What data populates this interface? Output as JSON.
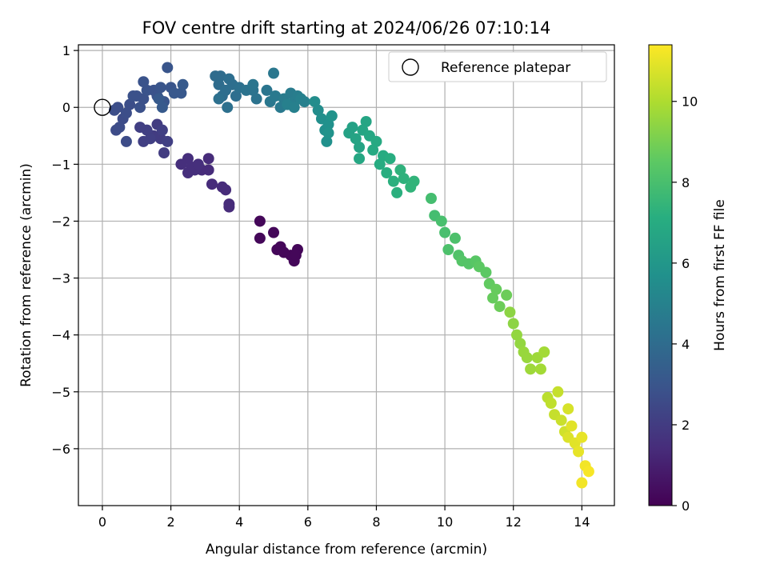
{
  "chart_data": {
    "type": "scatter",
    "title": "FOV centre drift starting at 2024/06/26 07:10:14",
    "xlabel": "Angular distance from reference (arcmin)",
    "ylabel": "Rotation from reference (arcmin)",
    "xlim": [
      -0.7,
      14.95
    ],
    "ylim": [
      -7.0,
      1.1
    ],
    "xticks": [
      0,
      2,
      4,
      6,
      8,
      10,
      12,
      14
    ],
    "yticks": [
      1,
      0,
      -1,
      -2,
      -3,
      -4,
      -5,
      -6
    ],
    "grid": true,
    "colormap": "viridis",
    "colorbar": {
      "label": "Hours from first FF file",
      "range": [
        0,
        11.4
      ],
      "ticks": [
        0,
        2,
        4,
        6,
        8,
        10
      ]
    },
    "legend": {
      "placement": "top-right",
      "entries": [
        "Reference platepar"
      ]
    },
    "reference_point": {
      "x": 0,
      "y": 0
    },
    "points": [
      [
        4.6,
        -2.0,
        0.2
      ],
      [
        4.6,
        -2.3,
        0.2
      ],
      [
        5.0,
        -2.2,
        0.2
      ],
      [
        5.1,
        -2.5,
        0.2
      ],
      [
        5.2,
        -2.45,
        0.2
      ],
      [
        5.5,
        -2.6,
        0.2
      ],
      [
        5.6,
        -2.7,
        0.2
      ],
      [
        5.7,
        -2.5,
        0.2
      ],
      [
        5.65,
        -2.6,
        0.2
      ],
      [
        5.3,
        -2.55,
        0.2
      ],
      [
        3.7,
        -1.7,
        1.4
      ],
      [
        3.7,
        -1.75,
        1.4
      ],
      [
        3.6,
        -1.45,
        1.4
      ],
      [
        3.5,
        -1.4,
        1.4
      ],
      [
        3.2,
        -1.35,
        1.4
      ],
      [
        3.1,
        -1.1,
        1.4
      ],
      [
        3.1,
        -0.9,
        1.4
      ],
      [
        2.9,
        -1.1,
        1.4
      ],
      [
        2.7,
        -1.1,
        1.5
      ],
      [
        2.5,
        -1.15,
        1.5
      ],
      [
        2.5,
        -0.9,
        1.5
      ],
      [
        2.3,
        -1.0,
        1.5
      ],
      [
        2.6,
        -1.05,
        1.5
      ],
      [
        2.8,
        -1.0,
        1.5
      ],
      [
        1.8,
        -0.8,
        2.0
      ],
      [
        1.7,
        -0.55,
        2.0
      ],
      [
        1.6,
        -0.3,
        2.0
      ],
      [
        1.5,
        -0.5,
        2.0
      ],
      [
        1.2,
        -0.6,
        2.1
      ],
      [
        1.3,
        -0.4,
        2.1
      ],
      [
        1.1,
        -0.35,
        2.1
      ],
      [
        1.4,
        -0.55,
        2.1
      ],
      [
        1.9,
        -0.6,
        2.1
      ],
      [
        1.75,
        -0.4,
        2.1
      ],
      [
        0.7,
        -0.6,
        2.6
      ],
      [
        0.6,
        -0.2,
        2.6
      ],
      [
        0.5,
        -0.35,
        2.6
      ],
      [
        0.4,
        -0.4,
        2.6
      ],
      [
        0.35,
        -0.05,
        2.7
      ],
      [
        0.45,
        0.0,
        2.7
      ],
      [
        0.7,
        -0.1,
        2.7
      ],
      [
        0.8,
        0.05,
        2.7
      ],
      [
        0.9,
        0.2,
        2.8
      ],
      [
        1.0,
        0.2,
        2.8
      ],
      [
        1.1,
        0.0,
        2.8
      ],
      [
        1.2,
        0.15,
        2.8
      ],
      [
        1.3,
        0.3,
        2.9
      ],
      [
        1.2,
        0.45,
        2.9
      ],
      [
        1.5,
        0.3,
        2.9
      ],
      [
        1.6,
        0.2,
        2.9
      ],
      [
        1.7,
        0.35,
        3.0
      ],
      [
        1.8,
        0.1,
        3.0
      ],
      [
        1.9,
        0.7,
        3.0
      ],
      [
        2.0,
        0.35,
        3.0
      ],
      [
        2.1,
        0.25,
        3.1
      ],
      [
        2.3,
        0.25,
        3.1
      ],
      [
        2.35,
        0.4,
        3.2
      ],
      [
        1.75,
        0.0,
        3.2
      ],
      [
        1.65,
        0.15,
        3.2
      ],
      [
        3.3,
        0.55,
        4.0
      ],
      [
        3.4,
        0.4,
        4.0
      ],
      [
        3.45,
        0.55,
        4.0
      ],
      [
        3.5,
        0.2,
        4.0
      ],
      [
        3.6,
        0.3,
        4.1
      ],
      [
        3.7,
        0.5,
        4.1
      ],
      [
        3.8,
        0.4,
        4.1
      ],
      [
        3.9,
        0.2,
        4.1
      ],
      [
        3.65,
        0.0,
        4.2
      ],
      [
        3.4,
        0.15,
        4.2
      ],
      [
        4.0,
        0.35,
        4.2
      ],
      [
        4.2,
        0.3,
        4.3
      ],
      [
        4.4,
        0.3,
        4.3
      ],
      [
        4.5,
        0.15,
        4.3
      ],
      [
        4.4,
        0.4,
        4.4
      ],
      [
        4.8,
        0.3,
        4.4
      ],
      [
        4.9,
        0.1,
        4.5
      ],
      [
        5.0,
        0.6,
        4.5
      ],
      [
        5.05,
        0.2,
        4.6
      ],
      [
        5.2,
        0.0,
        4.6
      ],
      [
        5.3,
        0.15,
        4.7
      ],
      [
        5.5,
        0.25,
        4.7
      ],
      [
        5.6,
        0.1,
        4.8
      ],
      [
        5.7,
        0.2,
        4.8
      ],
      [
        5.8,
        0.15,
        4.9
      ],
      [
        5.9,
        0.1,
        4.9
      ],
      [
        5.4,
        0.05,
        4.9
      ],
      [
        5.6,
        0.0,
        4.9
      ],
      [
        6.2,
        0.1,
        5.5
      ],
      [
        6.3,
        -0.05,
        5.5
      ],
      [
        6.4,
        -0.2,
        5.6
      ],
      [
        6.5,
        -0.4,
        5.6
      ],
      [
        6.6,
        -0.3,
        5.7
      ],
      [
        6.55,
        -0.6,
        5.7
      ],
      [
        6.7,
        -0.15,
        5.8
      ],
      [
        6.6,
        -0.45,
        5.8
      ],
      [
        7.2,
        -0.45,
        6.5
      ],
      [
        7.3,
        -0.35,
        6.5
      ],
      [
        7.4,
        -0.55,
        6.6
      ],
      [
        7.5,
        -0.7,
        6.6
      ],
      [
        7.6,
        -0.4,
        6.7
      ],
      [
        7.7,
        -0.25,
        6.7
      ],
      [
        7.8,
        -0.5,
        6.8
      ],
      [
        7.5,
        -0.9,
        6.8
      ],
      [
        7.9,
        -0.75,
        6.9
      ],
      [
        8.0,
        -0.6,
        6.9
      ],
      [
        8.1,
        -1.0,
        7.0
      ],
      [
        8.2,
        -0.85,
        7.0
      ],
      [
        8.3,
        -1.15,
        7.1
      ],
      [
        8.4,
        -0.9,
        7.1
      ],
      [
        8.5,
        -1.3,
        7.2
      ],
      [
        8.6,
        -1.5,
        7.2
      ],
      [
        8.7,
        -1.1,
        7.3
      ],
      [
        8.8,
        -1.25,
        7.3
      ],
      [
        9.0,
        -1.4,
        7.4
      ],
      [
        9.1,
        -1.3,
        7.4
      ],
      [
        9.6,
        -1.6,
        7.9
      ],
      [
        9.7,
        -1.9,
        7.9
      ],
      [
        9.9,
        -2.0,
        8.0
      ],
      [
        10.0,
        -2.2,
        8.0
      ],
      [
        10.1,
        -2.5,
        8.1
      ],
      [
        10.3,
        -2.3,
        8.1
      ],
      [
        10.4,
        -2.6,
        8.2
      ],
      [
        10.5,
        -2.7,
        8.3
      ],
      [
        10.7,
        -2.75,
        8.3
      ],
      [
        10.9,
        -2.7,
        8.4
      ],
      [
        11.0,
        -2.8,
        8.5
      ],
      [
        11.2,
        -2.9,
        8.5
      ],
      [
        11.3,
        -3.1,
        8.6
      ],
      [
        11.5,
        -3.2,
        8.7
      ],
      [
        11.4,
        -3.35,
        8.7
      ],
      [
        11.6,
        -3.5,
        8.8
      ],
      [
        11.8,
        -3.3,
        8.8
      ],
      [
        11.9,
        -3.6,
        9.4
      ],
      [
        12.0,
        -3.8,
        9.4
      ],
      [
        12.1,
        -4.0,
        9.5
      ],
      [
        12.2,
        -4.15,
        9.5
      ],
      [
        12.3,
        -4.3,
        9.6
      ],
      [
        12.4,
        -4.4,
        9.6
      ],
      [
        12.5,
        -4.6,
        9.7
      ],
      [
        12.7,
        -4.4,
        9.7
      ],
      [
        12.8,
        -4.6,
        9.8
      ],
      [
        12.9,
        -4.3,
        9.8
      ],
      [
        13.0,
        -5.1,
        10.2
      ],
      [
        13.1,
        -5.2,
        10.3
      ],
      [
        13.2,
        -5.4,
        10.4
      ],
      [
        13.3,
        -5.0,
        10.4
      ],
      [
        13.4,
        -5.5,
        10.5
      ],
      [
        13.5,
        -5.7,
        10.6
      ],
      [
        13.6,
        -5.3,
        10.7
      ],
      [
        13.6,
        -5.8,
        10.8
      ],
      [
        13.7,
        -5.6,
        10.9
      ],
      [
        13.8,
        -5.9,
        10.9
      ],
      [
        13.9,
        -6.05,
        11.0
      ],
      [
        14.0,
        -5.8,
        11.0
      ],
      [
        14.0,
        -6.6,
        11.2
      ],
      [
        14.1,
        -6.3,
        11.2
      ],
      [
        14.2,
        -6.4,
        11.3
      ]
    ]
  }
}
